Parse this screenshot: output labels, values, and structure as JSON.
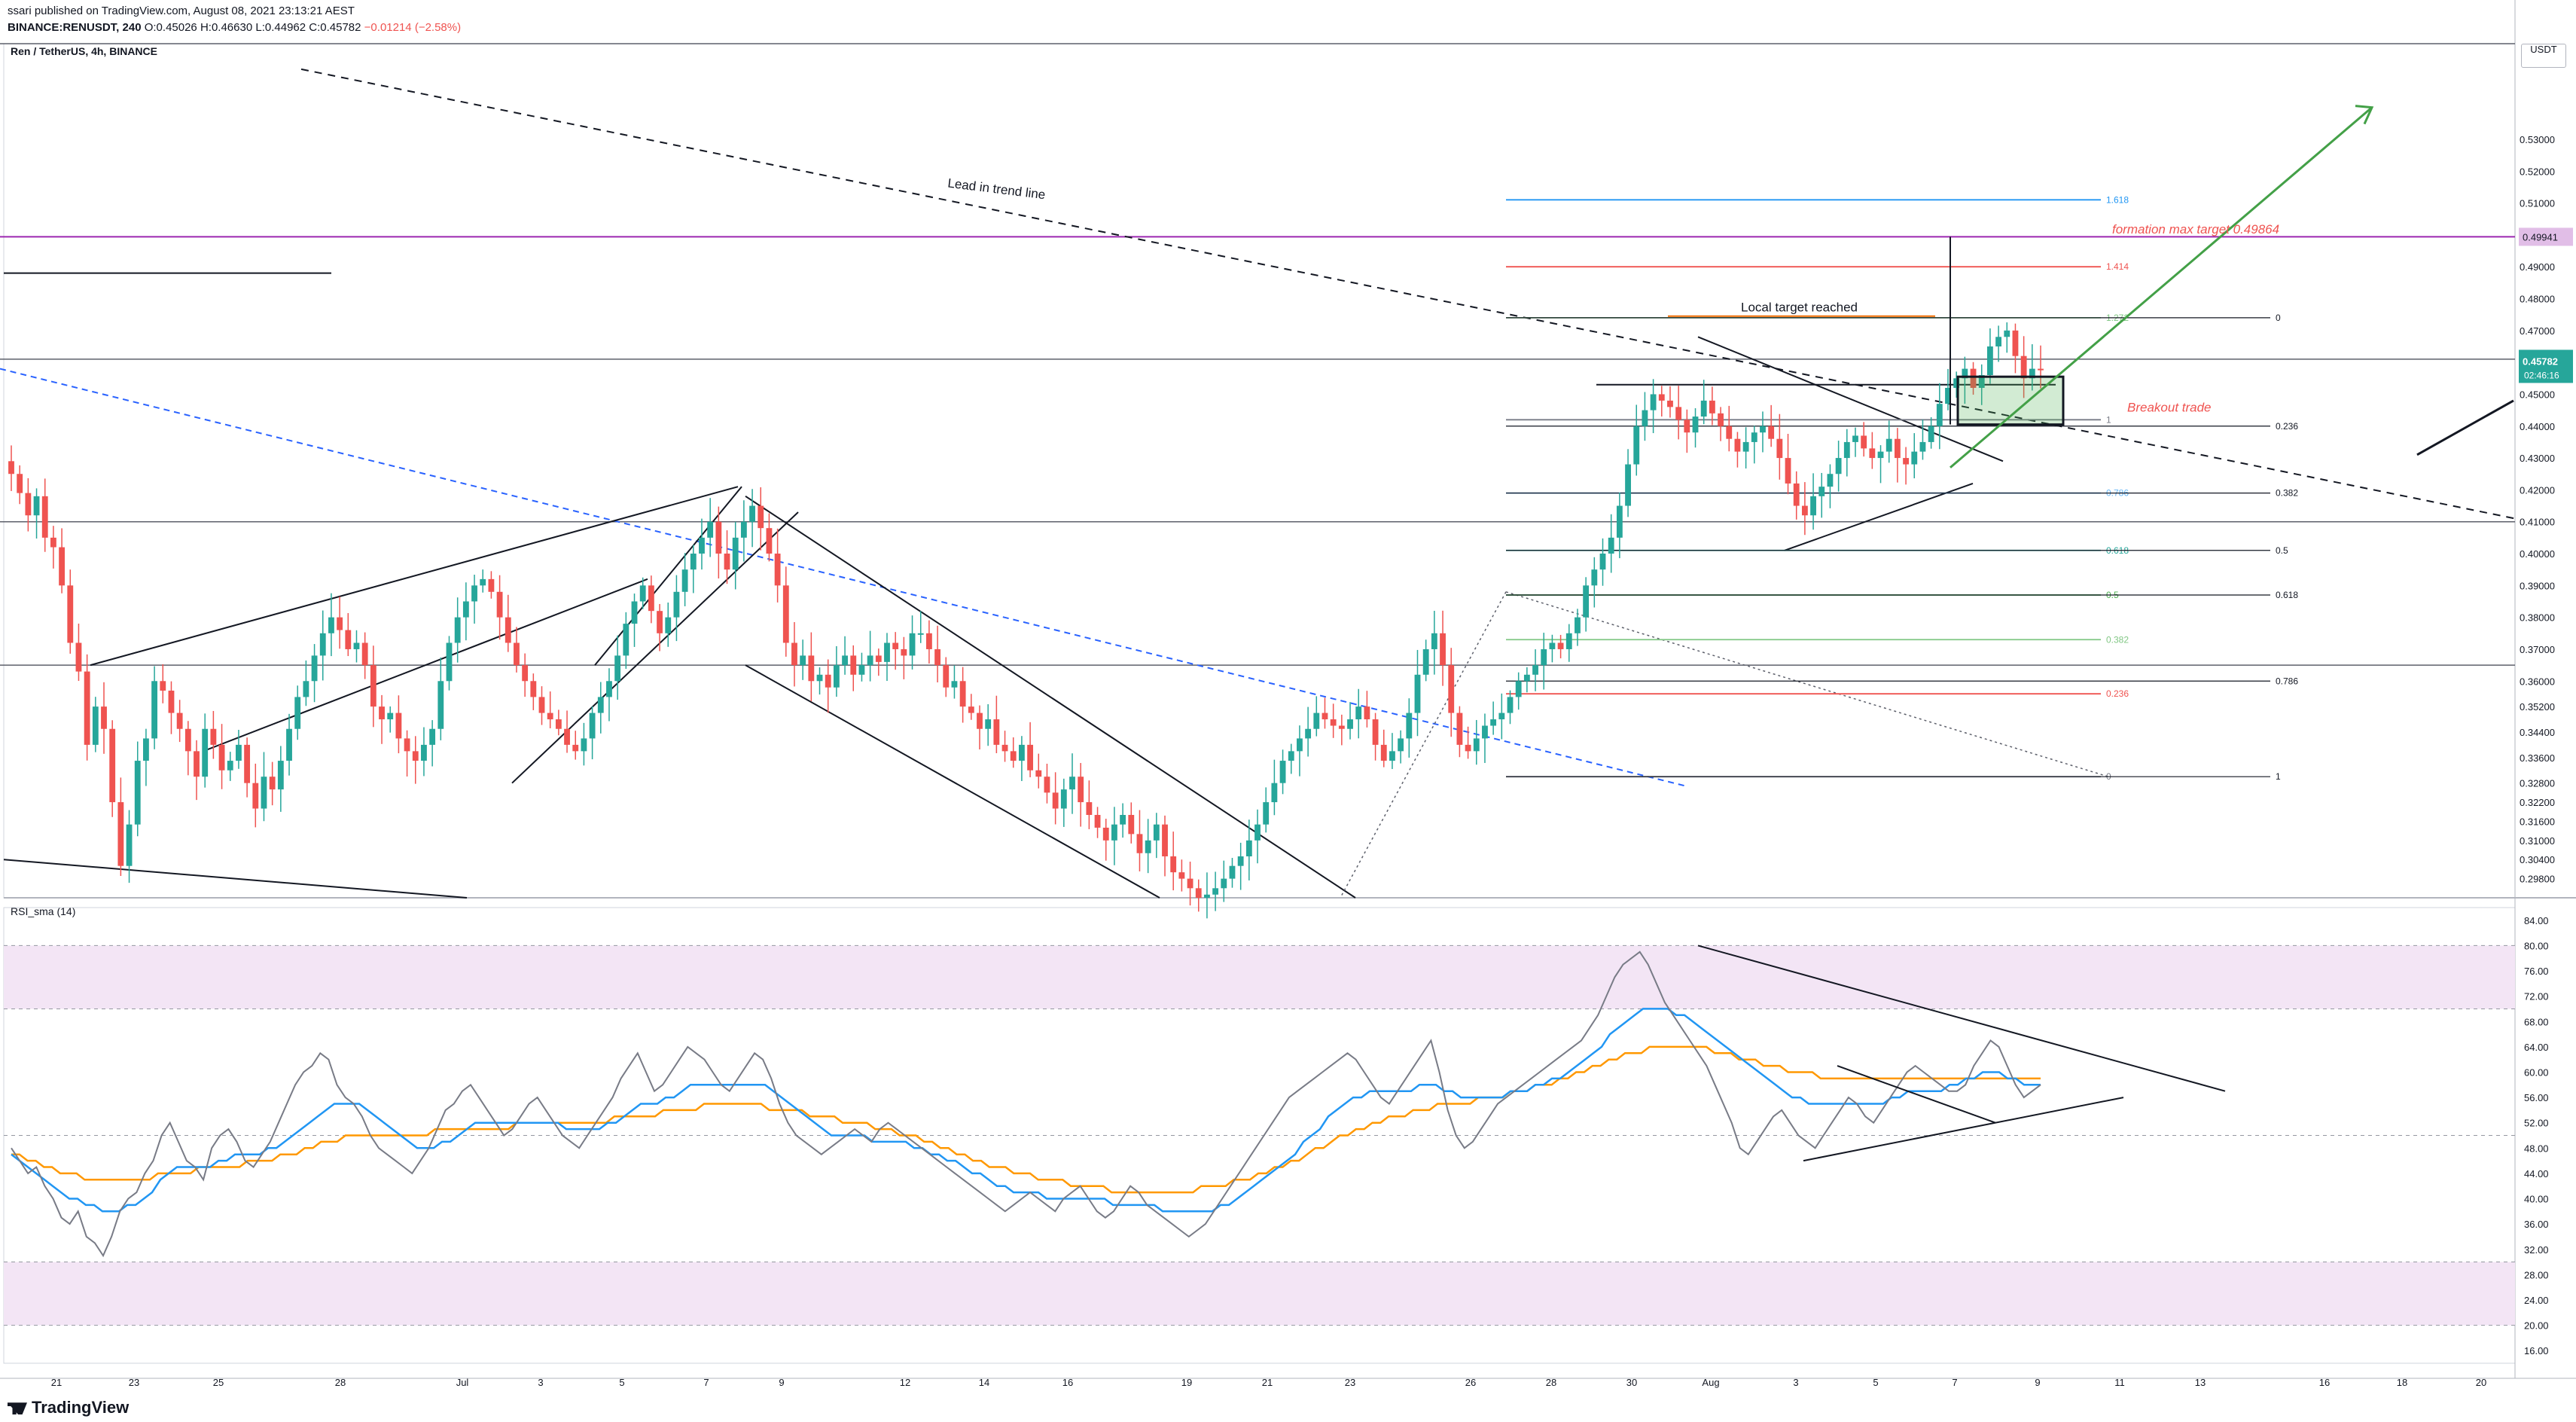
{
  "header": {
    "published": "ssari published on TradingView.com, August 08, 2021 23:13:21 AEST",
    "symbol": "BINANCE:RENUSDT, 240",
    "o": "O:0.45026",
    "h": "H:0.46630",
    "l": "L:0.44962",
    "c": "C:0.45782",
    "change": "−0.01214 (−2.58%)"
  },
  "panel_name": "Ren / TetherUS, 4h, BINANCE",
  "rsi_name": "RSI_sma (14)",
  "currency": "USDT",
  "logo": "TradingView",
  "colors": {
    "up": "#26a69a",
    "down": "#ef5350",
    "rsi_band": "#f3e5f5",
    "rsi_line": "#787b86",
    "rsi_fast": "#2196f3",
    "rsi_slow": "#ff9800",
    "fib_top": "#2196f3",
    "target_line": "#9c27b0",
    "arrow": "#43a047",
    "blue_dash": "#2962ff"
  },
  "annotations": {
    "lead_in": "Lead in trend line",
    "local_target": "Local target reached",
    "formation": "formation max target  0.49864",
    "breakout": "Breakout trade"
  },
  "price_badges": {
    "target": "0.49941",
    "current": "0.45782",
    "countdown": "02:46:16"
  },
  "fib_right": [
    {
      "label": "1.618",
      "color": "#2196f3"
    },
    {
      "label": "1.414",
      "color": "#ef5350"
    },
    {
      "label": "1.272",
      "color": "#81c784"
    },
    {
      "label": "1",
      "color": "#787b86"
    },
    {
      "label": "0.786",
      "color": "#64b5f6"
    },
    {
      "label": "0.618",
      "color": "#26a69a"
    },
    {
      "label": "0.5",
      "color": "#4caf50"
    },
    {
      "label": "0.382",
      "color": "#81c784"
    },
    {
      "label": "0.236",
      "color": "#ef5350"
    },
    {
      "label": "0",
      "color": "#787b86"
    }
  ],
  "fib_far": [
    "0",
    "0.236",
    "0.382",
    "0.5",
    "0.618",
    "0.786",
    "1"
  ],
  "chart_data": {
    "type": "candlestick",
    "ylim": [
      0.292,
      0.56
    ],
    "y_ticks": [
      "0.53000",
      "0.52000",
      "0.51000",
      "0.50000",
      "0.49000",
      "0.48000",
      "0.47000",
      "0.46000",
      "0.45000",
      "0.44000",
      "0.43000",
      "0.42000",
      "0.41000",
      "0.40000",
      "0.39000",
      "0.38000",
      "0.37000",
      "0.36000",
      "0.35200",
      "0.34400",
      "0.33600",
      "0.32800",
      "0.32200",
      "0.31600",
      "0.31000",
      "0.30400",
      "0.29800"
    ],
    "x_ticks": [
      "21",
      "23",
      "25",
      "28",
      "Jul",
      "3",
      "5",
      "7",
      "9",
      "12",
      "14",
      "16",
      "19",
      "21",
      "23",
      "26",
      "28",
      "30",
      "Aug",
      "3",
      "5",
      "7",
      "9",
      "11",
      "13",
      "16",
      "18",
      "20"
    ],
    "series": [
      {
        "name": "close",
        "values": [
          0.425,
          0.419,
          0.412,
          0.418,
          0.405,
          0.402,
          0.39,
          0.372,
          0.363,
          0.34,
          0.352,
          0.345,
          0.322,
          0.302,
          0.315,
          0.335,
          0.342,
          0.36,
          0.357,
          0.35,
          0.345,
          0.338,
          0.33,
          0.345,
          0.34,
          0.332,
          0.335,
          0.34,
          0.328,
          0.32,
          0.33,
          0.326,
          0.335,
          0.345,
          0.355,
          0.36,
          0.368,
          0.375,
          0.38,
          0.376,
          0.37,
          0.372,
          0.365,
          0.352,
          0.348,
          0.35,
          0.342,
          0.338,
          0.335,
          0.34,
          0.345,
          0.36,
          0.372,
          0.38,
          0.385,
          0.39,
          0.392,
          0.388,
          0.38,
          0.372,
          0.365,
          0.36,
          0.355,
          0.35,
          0.348,
          0.345,
          0.34,
          0.338,
          0.342,
          0.35,
          0.355,
          0.36,
          0.368,
          0.378,
          0.385,
          0.39,
          0.382,
          0.375,
          0.38,
          0.388,
          0.395,
          0.4,
          0.405,
          0.41,
          0.4,
          0.395,
          0.405,
          0.41,
          0.415,
          0.408,
          0.4,
          0.39,
          0.372,
          0.365,
          0.368,
          0.36,
          0.362,
          0.358,
          0.365,
          0.368,
          0.362,
          0.365,
          0.368,
          0.366,
          0.372,
          0.37,
          0.368,
          0.375,
          0.375,
          0.37,
          0.365,
          0.358,
          0.36,
          0.352,
          0.35,
          0.345,
          0.348,
          0.34,
          0.338,
          0.335,
          0.34,
          0.332,
          0.33,
          0.325,
          0.32,
          0.326,
          0.33,
          0.322,
          0.318,
          0.314,
          0.31,
          0.315,
          0.318,
          0.312,
          0.306,
          0.31,
          0.315,
          0.305,
          0.3,
          0.298,
          0.295,
          0.292,
          0.293,
          0.295,
          0.298,
          0.302,
          0.305,
          0.31,
          0.315,
          0.322,
          0.328,
          0.335,
          0.338,
          0.342,
          0.345,
          0.35,
          0.348,
          0.346,
          0.345,
          0.348,
          0.352,
          0.348,
          0.34,
          0.335,
          0.338,
          0.342,
          0.35,
          0.362,
          0.37,
          0.375,
          0.365,
          0.35,
          0.34,
          0.338,
          0.342,
          0.346,
          0.348,
          0.35,
          0.355,
          0.36,
          0.362,
          0.365,
          0.37,
          0.372,
          0.37,
          0.375,
          0.38,
          0.39,
          0.395,
          0.4,
          0.405,
          0.415,
          0.428,
          0.44,
          0.445,
          0.45,
          0.448,
          0.446,
          0.442,
          0.438,
          0.443,
          0.448,
          0.444,
          0.44,
          0.436,
          0.432,
          0.435,
          0.438,
          0.44,
          0.436,
          0.43,
          0.422,
          0.415,
          0.412,
          0.418,
          0.421,
          0.425,
          0.43,
          0.435,
          0.437,
          0.433,
          0.43,
          0.432,
          0.436,
          0.43,
          0.428,
          0.432,
          0.435,
          0.44,
          0.447,
          0.452,
          0.455,
          0.458,
          0.452,
          0.456,
          0.465,
          0.468,
          0.47,
          0.462,
          0.455,
          0.458,
          0.45782
        ]
      }
    ],
    "rsi": {
      "ylim": [
        14,
        86
      ],
      "y_ticks": [
        "84.00",
        "80.00",
        "76.00",
        "72.00",
        "68.00",
        "64.00",
        "60.00",
        "56.00",
        "52.00",
        "48.00",
        "44.00",
        "40.00",
        "36.00",
        "32.00",
        "28.00",
        "24.00",
        "20.00",
        "16.00"
      ],
      "bands": [
        [
          70,
          80
        ],
        [
          20,
          30
        ]
      ],
      "dashed_levels": [
        70,
        50,
        30
      ],
      "rsi": [
        48,
        46,
        44,
        45,
        42,
        40,
        37,
        36,
        38,
        34,
        33,
        31,
        34,
        38,
        40,
        41,
        44,
        46,
        50,
        52,
        49,
        46,
        45,
        43,
        48,
        50,
        51,
        49,
        46,
        45,
        47,
        49,
        52,
        55,
        58,
        60,
        61,
        63,
        62,
        58,
        56,
        55,
        53,
        50,
        48,
        47,
        46,
        45,
        44,
        46,
        48,
        51,
        54,
        55,
        57,
        58,
        56,
        54,
        52,
        50,
        51,
        53,
        55,
        56,
        54,
        52,
        50,
        49,
        48,
        50,
        52,
        54,
        56,
        59,
        61,
        63,
        60,
        57,
        58,
        60,
        62,
        64,
        63,
        62,
        60,
        58,
        57,
        59,
        61,
        63,
        62,
        59,
        55,
        52,
        50,
        49,
        48,
        47,
        48,
        49,
        50,
        51,
        50,
        49,
        51,
        52,
        51,
        50,
        49,
        48,
        47,
        46,
        45,
        44,
        43,
        42,
        41,
        40,
        39,
        38,
        39,
        40,
        41,
        40,
        39,
        38,
        40,
        41,
        42,
        40,
        38,
        37,
        38,
        40,
        42,
        41,
        39,
        38,
        37,
        36,
        35,
        34,
        35,
        36,
        38,
        40,
        42,
        44,
        46,
        48,
        50,
        52,
        54,
        56,
        57,
        58,
        59,
        60,
        61,
        62,
        63,
        62,
        60,
        58,
        56,
        55,
        57,
        59,
        61,
        63,
        65,
        60,
        54,
        50,
        48,
        49,
        51,
        53,
        55,
        56,
        57,
        58,
        59,
        60,
        61,
        62,
        63,
        64,
        65,
        67,
        69,
        72,
        75,
        77,
        78,
        79,
        77,
        74,
        71,
        69,
        67,
        65,
        63,
        61,
        58,
        55,
        52,
        48,
        47,
        49,
        51,
        53,
        54,
        52,
        50,
        49,
        48,
        50,
        52,
        54,
        56,
        55,
        53,
        52,
        54,
        56,
        58,
        60,
        61,
        60,
        59,
        58,
        57,
        57,
        58,
        61,
        63,
        65,
        64,
        61,
        58,
        56,
        57,
        58
      ],
      "ma_fast": [
        47,
        46,
        45,
        44,
        43,
        42,
        41,
        40,
        40,
        39,
        39,
        38,
        38,
        38,
        39,
        39,
        40,
        41,
        43,
        44,
        45,
        45,
        45,
        45,
        45,
        46,
        46,
        47,
        47,
        47,
        47,
        48,
        48,
        49,
        50,
        51,
        52,
        53,
        54,
        55,
        55,
        55,
        55,
        54,
        53,
        52,
        51,
        50,
        49,
        48,
        48,
        48,
        49,
        49,
        50,
        51,
        52,
        52,
        52,
        52,
        52,
        52,
        52,
        52,
        52,
        52,
        52,
        51,
        51,
        51,
        51,
        51,
        52,
        52,
        53,
        54,
        55,
        55,
        55,
        56,
        56,
        57,
        58,
        58,
        58,
        58,
        58,
        58,
        58,
        58,
        58,
        58,
        57,
        56,
        55,
        54,
        53,
        52,
        51,
        50,
        50,
        50,
        50,
        50,
        49,
        49,
        49,
        49,
        49,
        48,
        48,
        47,
        47,
        46,
        46,
        45,
        44,
        44,
        43,
        42,
        42,
        41,
        41,
        41,
        41,
        40,
        40,
        40,
        40,
        40,
        40,
        40,
        40,
        39,
        39,
        39,
        39,
        39,
        39,
        38,
        38,
        38,
        38,
        38,
        38,
        38,
        39,
        39,
        40,
        41,
        42,
        43,
        44,
        45,
        46,
        47,
        49,
        50,
        51,
        53,
        54,
        55,
        56,
        56,
        57,
        57,
        57,
        57,
        57,
        57,
        58,
        58,
        58,
        57,
        57,
        56,
        56,
        56,
        56,
        56,
        56,
        57,
        57,
        57,
        58,
        58,
        59,
        59,
        60,
        61,
        62,
        63,
        64,
        66,
        67,
        68,
        69,
        70,
        70,
        70,
        70,
        69,
        69,
        68,
        67,
        66,
        65,
        64,
        63,
        62,
        61,
        60,
        59,
        58,
        57,
        56,
        56,
        55,
        55,
        55,
        55,
        55,
        55,
        55,
        55,
        55,
        55,
        56,
        56,
        57,
        57,
        57,
        57,
        57,
        58,
        58,
        59,
        59,
        60,
        60,
        60,
        59,
        59,
        58,
        58,
        58
      ],
      "ma_slow": [
        47,
        47,
        46,
        46,
        45,
        45,
        44,
        44,
        44,
        43,
        43,
        43,
        43,
        43,
        43,
        43,
        43,
        43,
        44,
        44,
        44,
        44,
        44,
        45,
        45,
        45,
        45,
        45,
        45,
        46,
        46,
        46,
        46,
        47,
        47,
        47,
        48,
        48,
        49,
        49,
        49,
        50,
        50,
        50,
        50,
        50,
        50,
        50,
        50,
        50,
        50,
        50,
        51,
        51,
        51,
        51,
        51,
        51,
        51,
        51,
        51,
        51,
        52,
        52,
        52,
        52,
        52,
        52,
        52,
        52,
        52,
        52,
        52,
        52,
        53,
        53,
        53,
        53,
        53,
        53,
        54,
        54,
        54,
        54,
        54,
        55,
        55,
        55,
        55,
        55,
        55,
        55,
        55,
        54,
        54,
        54,
        54,
        54,
        53,
        53,
        53,
        53,
        52,
        52,
        52,
        52,
        51,
        51,
        51,
        50,
        50,
        50,
        49,
        49,
        48,
        48,
        47,
        47,
        46,
        46,
        45,
        45,
        45,
        44,
        44,
        44,
        43,
        43,
        43,
        43,
        42,
        42,
        42,
        42,
        42,
        41,
        41,
        41,
        41,
        41,
        41,
        41,
        41,
        41,
        41,
        41,
        42,
        42,
        42,
        42,
        43,
        43,
        43,
        44,
        44,
        45,
        45,
        46,
        46,
        47,
        48,
        48,
        49,
        50,
        50,
        51,
        51,
        52,
        52,
        53,
        53,
        53,
        54,
        54,
        54,
        55,
        55,
        55,
        55,
        55,
        56,
        56,
        56,
        56,
        57,
        57,
        57,
        58,
        58,
        58,
        59,
        59,
        60,
        60,
        61,
        61,
        62,
        62,
        63,
        63,
        63,
        64,
        64,
        64,
        64,
        64,
        64,
        64,
        64,
        63,
        63,
        63,
        62,
        62,
        62,
        61,
        61,
        61,
        60,
        60,
        60,
        60,
        59,
        59,
        59,
        59,
        59,
        59,
        59,
        59,
        59,
        59,
        59,
        59,
        59,
        59,
        59,
        59,
        59,
        59,
        59,
        59,
        59,
        59,
        59,
        59,
        59,
        59,
        59,
        59
      ]
    }
  }
}
